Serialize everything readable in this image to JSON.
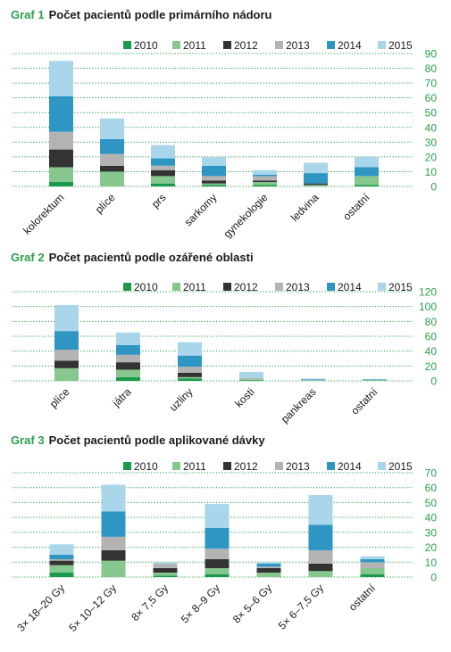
{
  "colors": {
    "2010": "#1a9a4a",
    "2011": "#86c78e",
    "2012": "#333333",
    "2013": "#b3b3b3",
    "2014": "#2f96c3",
    "2015": "#a9d6ea",
    "grid": "#2aa04a",
    "label": "#2aa04a"
  },
  "chart_data": [
    {
      "type": "bar",
      "stacked": true,
      "label": "Graf 1",
      "title": "Počet pacientů podle primárního nádoru",
      "categories": [
        "kolorektum",
        "plíce",
        "prs",
        "sarkomy",
        "gynekologie",
        "ledvina",
        "ostatní"
      ],
      "series": [
        {
          "name": "2010",
          "values": [
            3,
            0,
            2,
            1,
            1,
            0,
            1
          ]
        },
        {
          "name": "2011",
          "values": [
            10,
            10,
            5,
            1,
            2,
            1,
            6
          ]
        },
        {
          "name": "2012",
          "values": [
            12,
            4,
            4,
            2,
            1,
            1,
            0
          ]
        },
        {
          "name": "2013",
          "values": [
            12,
            8,
            3,
            3,
            3,
            0,
            0
          ]
        },
        {
          "name": "2014",
          "values": [
            24,
            10,
            5,
            7,
            1,
            7,
            6
          ]
        },
        {
          "name": "2015",
          "values": [
            24,
            14,
            9,
            6,
            3,
            7,
            7
          ]
        }
      ],
      "yticks": [
        0,
        10,
        20,
        30,
        40,
        50,
        60,
        70,
        80,
        90
      ],
      "ylim": [
        0,
        90
      ],
      "legend_position": "top",
      "grid": true
    },
    {
      "type": "bar",
      "stacked": true,
      "label": "Graf 2",
      "title": "Počet pacientů podle ozářené oblasti",
      "categories": [
        "plíce",
        "játra",
        "uzliny",
        "kosti",
        "pankreas",
        "ostatní"
      ],
      "series": [
        {
          "name": "2010",
          "values": [
            0,
            5,
            3,
            1,
            0,
            0
          ]
        },
        {
          "name": "2011",
          "values": [
            17,
            10,
            2,
            1,
            0,
            1
          ]
        },
        {
          "name": "2012",
          "values": [
            10,
            10,
            6,
            0,
            0,
            0
          ]
        },
        {
          "name": "2013",
          "values": [
            15,
            10,
            8,
            2,
            1,
            0
          ]
        },
        {
          "name": "2014",
          "values": [
            25,
            13,
            15,
            0,
            1,
            1
          ]
        },
        {
          "name": "2015",
          "values": [
            35,
            17,
            18,
            8,
            1,
            0
          ]
        }
      ],
      "yticks": [
        0,
        20,
        40,
        60,
        80,
        100,
        120
      ],
      "ylim": [
        0,
        120
      ],
      "legend_position": "top",
      "grid": true
    },
    {
      "type": "bar",
      "stacked": true,
      "label": "Graf 3",
      "title": "Počet pacientů podle aplikované dávky",
      "categories": [
        "3× 18–20 Gy",
        "5× 10–12 Gy",
        "8× 7,5 Gy",
        "5× 8–9 Gy",
        "8× 5–6 Gy",
        "5× 6–7,5 Gy",
        "ostatní"
      ],
      "series": [
        {
          "name": "2010",
          "values": [
            3,
            0,
            1,
            2,
            0,
            0,
            2
          ]
        },
        {
          "name": "2011",
          "values": [
            5,
            11,
            2,
            4,
            3,
            4,
            4
          ]
        },
        {
          "name": "2012",
          "values": [
            3,
            7,
            3,
            6,
            3,
            5,
            0
          ]
        },
        {
          "name": "2013",
          "values": [
            1,
            9,
            3,
            7,
            1,
            9,
            4
          ]
        },
        {
          "name": "2014",
          "values": [
            3,
            17,
            0,
            14,
            2,
            17,
            2
          ]
        },
        {
          "name": "2015",
          "values": [
            7,
            18,
            1,
            16,
            1,
            20,
            2
          ]
        }
      ],
      "yticks": [
        0,
        10,
        20,
        30,
        40,
        50,
        60,
        70
      ],
      "ylim": [
        0,
        70
      ],
      "legend_position": "top",
      "grid": true
    }
  ]
}
